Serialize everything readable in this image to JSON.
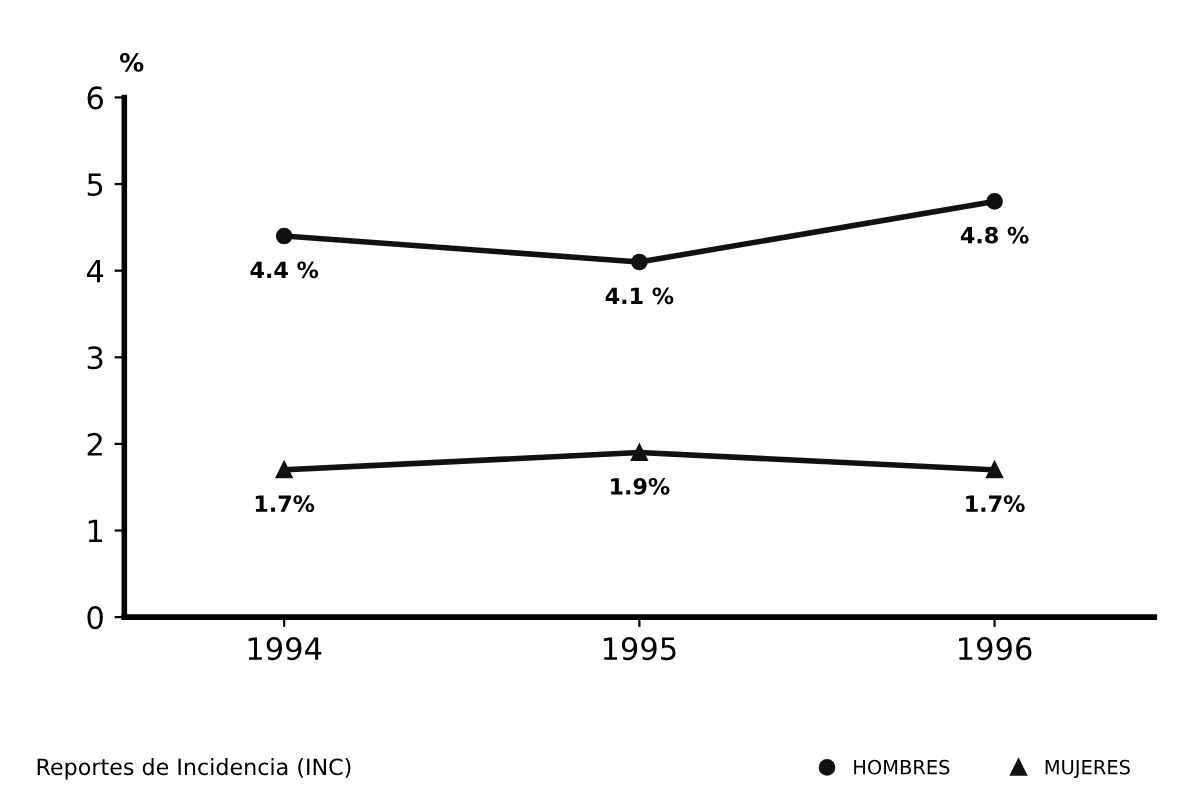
{
  "chart_data": {
    "type": "line",
    "ylabel": "%",
    "categories": [
      "1994",
      "1995",
      "1996"
    ],
    "series": [
      {
        "name": "HOMBRES",
        "color": "#111111",
        "marker": "circle",
        "values": [
          4.4,
          4.1,
          4.8
        ],
        "value_labels": [
          "4.4 %",
          "4.1 %",
          "4.8 %"
        ]
      },
      {
        "name": "MUJERES",
        "color": "#111111",
        "marker": "triangle",
        "values": [
          1.7,
          1.9,
          1.7
        ],
        "value_labels": [
          "1.7%",
          "1.9%",
          "1.7%"
        ]
      }
    ],
    "ylim": [
      0,
      6
    ],
    "yticks": [
      0,
      1,
      2,
      3,
      4,
      5,
      6
    ],
    "grid": false,
    "legend": "bottom right",
    "line_style": "solid",
    "annotations": [
      "Reportes de Incidencia (INC)"
    ]
  }
}
